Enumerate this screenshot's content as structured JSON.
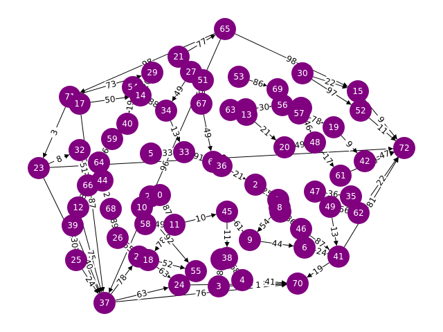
{
  "graph": {
    "node_color": "#800080",
    "edge_color": "#000000",
    "node_label_color": "#ffffff",
    "directed": true,
    "nodes": [
      {
        "id": "65"
      },
      {
        "id": "21"
      },
      {
        "id": "29"
      },
      {
        "id": "27"
      },
      {
        "id": "51"
      },
      {
        "id": "53"
      },
      {
        "id": "30"
      },
      {
        "id": "15"
      },
      {
        "id": "52"
      },
      {
        "id": "72"
      },
      {
        "id": "71"
      },
      {
        "id": "17"
      },
      {
        "id": "54"
      },
      {
        "id": "14"
      },
      {
        "id": "34"
      },
      {
        "id": "67"
      },
      {
        "id": "63"
      },
      {
        "id": "50"
      },
      {
        "id": "13"
      },
      {
        "id": "69"
      },
      {
        "id": "56"
      },
      {
        "id": "43"
      },
      {
        "id": "57"
      },
      {
        "id": "19"
      },
      {
        "id": "40"
      },
      {
        "id": "59"
      },
      {
        "id": "48"
      },
      {
        "id": "42"
      },
      {
        "id": "23"
      },
      {
        "id": "32"
      },
      {
        "id": "64"
      },
      {
        "id": "5"
      },
      {
        "id": "33"
      },
      {
        "id": "60"
      },
      {
        "id": "36"
      },
      {
        "id": "20"
      },
      {
        "id": "61"
      },
      {
        "id": "66"
      },
      {
        "id": "44"
      },
      {
        "id": "2"
      },
      {
        "id": "47"
      },
      {
        "id": "35"
      },
      {
        "id": "12"
      },
      {
        "id": "68"
      },
      {
        "id": "28"
      },
      {
        "id": "0"
      },
      {
        "id": "10"
      },
      {
        "id": "7"
      },
      {
        "id": "31"
      },
      {
        "id": "49"
      },
      {
        "id": "62"
      },
      {
        "id": "39"
      },
      {
        "id": "58"
      },
      {
        "id": "11"
      },
      {
        "id": "45"
      },
      {
        "id": "46"
      },
      {
        "id": "26"
      },
      {
        "id": "9"
      },
      {
        "id": "6"
      },
      {
        "id": "25"
      },
      {
        "id": "22"
      },
      {
        "id": "18"
      },
      {
        "id": "1"
      },
      {
        "id": "38"
      },
      {
        "id": "41"
      },
      {
        "id": "55"
      },
      {
        "id": "4"
      },
      {
        "id": "24"
      },
      {
        "id": "3"
      },
      {
        "id": "70"
      },
      {
        "id": "37"
      },
      {
        "id": "8"
      }
    ],
    "edges": [
      {
        "source": "65",
        "target": "15",
        "weight": "98"
      },
      {
        "source": "65",
        "target": "71",
        "weight": "98"
      },
      {
        "source": "65",
        "target": "37",
        "weight": "96"
      },
      {
        "source": "21",
        "target": "65",
        "weight": "77"
      },
      {
        "source": "30",
        "target": "15",
        "weight": "22"
      },
      {
        "source": "30",
        "target": "52",
        "weight": "97"
      },
      {
        "source": "15",
        "target": "72",
        "weight": "9"
      },
      {
        "source": "52",
        "target": "72",
        "weight": "11"
      },
      {
        "source": "71",
        "target": "29",
        "weight": "73"
      },
      {
        "source": "71",
        "target": "23",
        "weight": "3"
      },
      {
        "source": "17",
        "target": "14",
        "weight": "50"
      },
      {
        "source": "17",
        "target": "37",
        "weight": "87"
      },
      {
        "source": "23",
        "target": "37",
        "weight": "39"
      },
      {
        "source": "23",
        "target": "32",
        "weight": "8"
      },
      {
        "source": "23",
        "target": "72",
        "weight": "42"
      },
      {
        "source": "12",
        "target": "37",
        "weight": "75"
      },
      {
        "source": "39",
        "target": "37",
        "weight": "40"
      },
      {
        "source": "25",
        "target": "37",
        "weight": "24"
      },
      {
        "source": "37",
        "target": "24",
        "weight": "63"
      },
      {
        "source": "37",
        "target": "70",
        "weight": "76"
      },
      {
        "source": "37",
        "target": "22",
        "weight": "78"
      },
      {
        "source": "24",
        "target": "70",
        "weight": "70"
      },
      {
        "source": "3",
        "target": "70",
        "weight": "1"
      },
      {
        "source": "4",
        "target": "70",
        "weight": "41"
      },
      {
        "source": "41",
        "target": "70",
        "weight": "19"
      },
      {
        "source": "41",
        "target": "72",
        "weight": "81"
      },
      {
        "source": "62",
        "target": "72",
        "weight": "22"
      },
      {
        "source": "42",
        "target": "72",
        "weight": "47"
      },
      {
        "source": "61",
        "target": "72",
        "weight": "60"
      },
      {
        "source": "46",
        "target": "41",
        "weight": "87"
      },
      {
        "source": "6",
        "target": "41",
        "weight": "24"
      },
      {
        "source": "49",
        "target": "41",
        "weight": "13"
      },
      {
        "source": "55",
        "target": "24",
        "weight": "86"
      },
      {
        "source": "18",
        "target": "24",
        "weight": "63"
      },
      {
        "source": "38",
        "target": "4",
        "weight": "68"
      },
      {
        "source": "1",
        "target": "3",
        "weight": "8"
      },
      {
        "source": "22",
        "target": "55",
        "weight": "52"
      },
      {
        "source": "26",
        "target": "22",
        "weight": "55"
      },
      {
        "source": "58",
        "target": "11",
        "weight": "49"
      },
      {
        "source": "11",
        "target": "45",
        "weight": "10"
      },
      {
        "source": "45",
        "target": "9",
        "weight": "61"
      },
      {
        "source": "9",
        "target": "6",
        "weight": "44"
      },
      {
        "source": "46",
        "target": "6",
        "weight": "55"
      },
      {
        "source": "47",
        "target": "35",
        "weight": "36"
      },
      {
        "source": "49",
        "target": "62",
        "weight": "56"
      },
      {
        "source": "2",
        "target": "7",
        "weight": "25"
      },
      {
        "source": "31",
        "target": "46",
        "weight": "36"
      },
      {
        "source": "8",
        "target": "9",
        "weight": "54"
      },
      {
        "source": "20",
        "target": "48",
        "weight": "49"
      },
      {
        "source": "48",
        "target": "61",
        "weight": "17"
      },
      {
        "source": "19",
        "target": "42",
        "weight": "9"
      },
      {
        "source": "57",
        "target": "19",
        "weight": "78"
      },
      {
        "source": "56",
        "target": "43",
        "weight": "81"
      },
      {
        "source": "69",
        "target": "56",
        "weight": "73"
      },
      {
        "source": "63",
        "target": "13",
        "weight": "30"
      },
      {
        "source": "50",
        "target": "56",
        "weight": "30"
      },
      {
        "source": "53",
        "target": "69",
        "weight": "86"
      },
      {
        "source": "51",
        "target": "67",
        "weight": "9"
      },
      {
        "source": "27",
        "target": "34",
        "weight": "49"
      },
      {
        "source": "29",
        "target": "14",
        "weight": "20"
      },
      {
        "source": "54",
        "target": "40",
        "weight": "19"
      },
      {
        "source": "40",
        "target": "59",
        "weight": "52"
      },
      {
        "source": "59",
        "target": "64",
        "weight": "6"
      },
      {
        "source": "32",
        "target": "66",
        "weight": "51"
      },
      {
        "source": "64",
        "target": "44",
        "weight": "31"
      },
      {
        "source": "66",
        "target": "12",
        "weight": "8"
      },
      {
        "source": "44",
        "target": "68",
        "weight": "2"
      },
      {
        "source": "12",
        "target": "39",
        "weight": "66"
      },
      {
        "source": "39",
        "target": "25",
        "weight": "30"
      },
      {
        "source": "68",
        "target": "26",
        "weight": "89"
      },
      {
        "source": "10",
        "target": "58",
        "weight": "8"
      },
      {
        "source": "28",
        "target": "0",
        "weight": "27"
      },
      {
        "source": "5",
        "target": "33",
        "weight": "33"
      },
      {
        "source": "33",
        "target": "60",
        "weight": "91"
      },
      {
        "source": "60",
        "target": "36",
        "weight": "34"
      },
      {
        "source": "36",
        "target": "2",
        "weight": "21"
      },
      {
        "source": "34",
        "target": "33",
        "weight": "13"
      },
      {
        "source": "67",
        "target": "60",
        "weight": "49"
      },
      {
        "source": "13",
        "target": "20",
        "weight": "21"
      },
      {
        "source": "0",
        "target": "11",
        "weight": "87"
      },
      {
        "source": "11",
        "target": "18",
        "weight": "78"
      },
      {
        "source": "45",
        "target": "38",
        "weight": "11"
      },
      {
        "source": "7",
        "target": "31",
        "weight": "6"
      },
      {
        "source": "35",
        "target": "62",
        "weight": "13"
      },
      {
        "source": "47",
        "target": "49",
        "weight": "67"
      },
      {
        "source": "14",
        "target": "34",
        "weight": "88"
      },
      {
        "source": "43",
        "target": "48",
        "weight": "46"
      },
      {
        "source": "10",
        "target": "55",
        "weight": "92"
      }
    ]
  }
}
